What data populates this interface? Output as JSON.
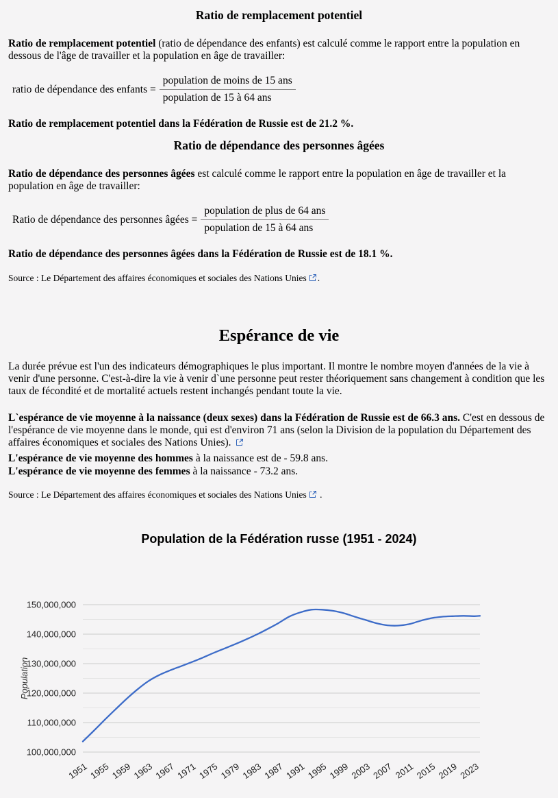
{
  "page": {
    "background": "#f5f4f5",
    "link_icon_color": "#3366bb"
  },
  "sections": {
    "replacement": {
      "title": "Ratio de remplacement potentiel",
      "para_bold": "Ratio de remplacement potentiel",
      "para_rest": " (ratio de dépendance des enfants) est calculé comme le rapport entre la population en dessous de l'âge de travailler et la population en âge de travailler:",
      "formula_label": "ratio de dépendance des enfants =",
      "formula_numerator": "population de moins de 15 ans",
      "formula_denominator": "population de 15 à 64 ans",
      "result": "Ratio de remplacement potentiel dans la Fédération de Russie est de 21.2 %."
    },
    "elderly": {
      "title": "Ratio de dépendance des personnes âgées",
      "para_bold": "Ratio de dépendance des personnes âgées",
      "para_rest": " est calculé comme le rapport entre la population en âge de travailler et la population en âge de travailler:",
      "formula_label": "Ratio de dépendance des personnes âgées =",
      "formula_numerator": "population de plus de 64 ans",
      "formula_denominator": "population de 15 à 64 ans",
      "result": "Ratio de dépendance des personnes âgées dans la Fédération de Russie est de 18.1 %.",
      "source_prefix": "Source : ",
      "source_link": "Le Département des affaires économiques et sociales des Nations Unies",
      "source_suffix": "."
    },
    "life": {
      "title": "Espérance de vie",
      "para1": "La durée prévue est l'un des indicateurs démographiques le plus important. Il montre le nombre moyen d'années de la vie à venir d'une personne. C'est-à-dire la vie à venir d`une personne peut rester théoriquement sans changement à condition que les taux de fécondité et de mortalité actuels restent inchangés pendant toute la vie.",
      "para2_bold": "L`espérance de vie moyenne à la naissance (deux sexes) dans la Fédération de Russie est de 66.3 ans.",
      "para2_rest": " C'est en dessous de l'espérance de vie moyenne dans le monde, qui est d'environ 71 ans (selon la Division de la population du Département des affaires économiques et sociales des Nations Unies). ",
      "men_bold": "L'espérance de vie moyenne des hommes",
      "men_rest": " à la naissance est de - 59.8 ans.",
      "women_bold": "L'espérance de vie moyenne des femmes",
      "women_rest": " à la naissance - 73.2 ans.",
      "source_prefix": "Source : ",
      "source_link": "Le Département des affaires économiques et sociales des Nations Unies",
      "source_suffix": " ."
    }
  },
  "chart_data": {
    "type": "line",
    "title": "Population de la Fédération russe (1951 - 2024)",
    "xlabel": "",
    "ylabel": "Population",
    "legend": "none",
    "grid": true,
    "line_color": "#3d6cc8",
    "grid_color": "#cccccc",
    "minor_grid_color": "#e4e4e4",
    "xlim": [
      1951,
      2024
    ],
    "ylim": [
      100000000,
      150000000
    ],
    "x": [
      1951,
      1953,
      1955,
      1957,
      1959,
      1961,
      1963,
      1965,
      1967,
      1969,
      1971,
      1973,
      1975,
      1977,
      1979,
      1981,
      1983,
      1985,
      1987,
      1989,
      1991,
      1993,
      1995,
      1997,
      1999,
      2001,
      2003,
      2005,
      2007,
      2009,
      2011,
      2013,
      2015,
      2017,
      2019,
      2021,
      2023,
      2024
    ],
    "values": [
      103600000,
      107200000,
      110900000,
      114500000,
      118000000,
      121200000,
      124000000,
      126100000,
      127700000,
      129100000,
      130500000,
      132000000,
      133600000,
      135100000,
      136600000,
      138200000,
      139900000,
      141800000,
      143800000,
      146000000,
      147400000,
      148300000,
      148300000,
      147900000,
      147100000,
      145900000,
      144800000,
      143700000,
      143000000,
      142900000,
      143400000,
      144500000,
      145400000,
      145900000,
      146100000,
      146200000,
      146100000,
      146200000
    ],
    "x_tick_labels": [
      "1951",
      "1955",
      "1959",
      "1963",
      "1967",
      "1971",
      "1975",
      "1979",
      "1983",
      "1987",
      "1991",
      "1995",
      "1999",
      "2003",
      "2007",
      "2011",
      "2015",
      "2019",
      "2023"
    ],
    "y_ticks": [
      100000000,
      110000000,
      120000000,
      130000000,
      140000000,
      150000000
    ],
    "y_tick_labels": [
      "100,000,000",
      "110,000,000",
      "120,000,000",
      "130,000,000",
      "140,000,000",
      "150,000,000"
    ],
    "y_minor_ticks": [
      105000000,
      115000000,
      125000000,
      135000000,
      145000000
    ]
  }
}
